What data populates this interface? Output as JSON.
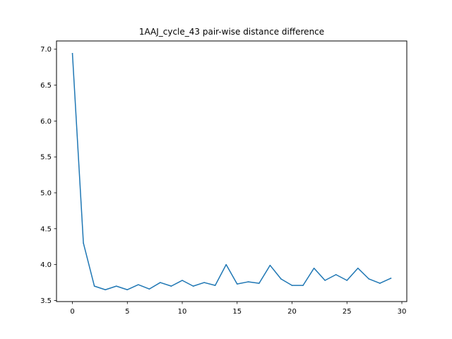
{
  "chart_data": {
    "type": "line",
    "title": "1AAJ_cycle_43 pair-wise distance difference",
    "xlabel": "",
    "ylabel": "",
    "xlim": [
      -1.45,
      30.45
    ],
    "ylim": [
      3.485,
      7.115
    ],
    "xticks": [
      0,
      5,
      10,
      15,
      20,
      25,
      30
    ],
    "yticks": [
      3.5,
      4.0,
      4.5,
      5.0,
      5.5,
      6.0,
      6.5,
      7.0
    ],
    "xtick_labels": [
      "0",
      "5",
      "10",
      "15",
      "20",
      "25",
      "30"
    ],
    "ytick_labels": [
      "3.5",
      "4.0",
      "4.5",
      "5.0",
      "5.5",
      "6.0",
      "6.5",
      "7.0"
    ],
    "grid": false,
    "legend": "none",
    "series": [
      {
        "color": "#1f77b4",
        "x": [
          0,
          1,
          2,
          3,
          4,
          5,
          6,
          7,
          8,
          9,
          10,
          11,
          12,
          13,
          14,
          15,
          16,
          17,
          18,
          19,
          20,
          21,
          22,
          23,
          24,
          25,
          26,
          27,
          28,
          29
        ],
        "y": [
          6.94,
          4.3,
          3.7,
          3.65,
          3.7,
          3.65,
          3.72,
          3.66,
          3.75,
          3.7,
          3.78,
          3.7,
          3.75,
          3.71,
          4.0,
          3.73,
          3.76,
          3.74,
          3.99,
          3.8,
          3.71,
          3.71,
          3.95,
          3.78,
          3.86,
          3.78,
          3.95,
          3.8,
          3.74,
          3.81
        ]
      }
    ]
  }
}
